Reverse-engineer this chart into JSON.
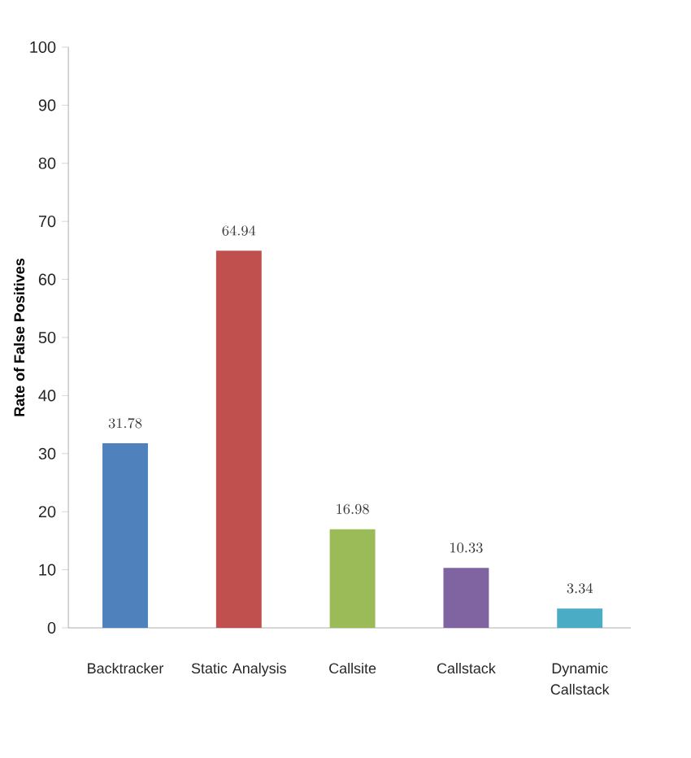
{
  "chart_data": {
    "type": "bar",
    "ylabel": "Rate of False Positives",
    "categories": [
      "Backtracker",
      "Static Analysis",
      "Callsite",
      "Callstack",
      "Dynamic Callstack"
    ],
    "values": [
      31.78,
      64.94,
      16.98,
      10.33,
      3.34
    ],
    "colors": [
      "#4f81bd",
      "#c0504d",
      "#9bbb59",
      "#8064a2",
      "#4bacc6"
    ],
    "ylim": [
      0,
      100
    ],
    "yticks": [
      0,
      10,
      20,
      30,
      40,
      50,
      60,
      70,
      80,
      90,
      100
    ],
    "data_labels": true
  }
}
